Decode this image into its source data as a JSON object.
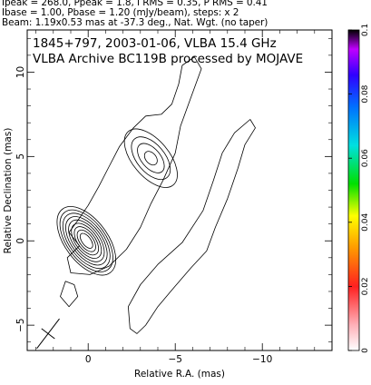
{
  "header": {
    "line1": "Ipeak = 268.0, Ppeak = 1.8, I RMS = 0.35, P RMS = 0.41",
    "line2": "Ibase = 1.00, Pbase = 1.20 (mJy/beam), steps: x 2",
    "line3": "Beam: 1.19x0.53 mas at -37.3 deg., Nat. Wgt. (no taper)"
  },
  "chart_data": {
    "type": "contour",
    "title": "1845+797, 2003-01-06, VLBA 15.4 GHz",
    "subtitle": "VLBA Archive BC119B processed by MOJAVE",
    "xlabel": "Relative R.A. (mas)",
    "ylabel": "Relative Declination (mas)",
    "xlim": [
      3.5,
      -14
    ],
    "ylim": [
      -6.5,
      12.5
    ],
    "x_ticks": [
      {
        "value": 0,
        "label": "0"
      },
      {
        "value": -5,
        "label": "−5"
      },
      {
        "value": -10,
        "label": "−10"
      }
    ],
    "y_ticks": [
      {
        "value": -5,
        "label": "−5"
      },
      {
        "value": 0,
        "label": "0"
      },
      {
        "value": 5,
        "label": "5"
      },
      {
        "value": 10,
        "label": "10"
      }
    ],
    "colorbar": {
      "range": [
        0,
        0.1
      ],
      "ticks": [
        {
          "value": 0,
          "label": "0"
        },
        {
          "value": 0.02,
          "label": "0.02"
        },
        {
          "value": 0.04,
          "label": "0.04"
        },
        {
          "value": 0.06,
          "label": "0.06"
        },
        {
          "value": 0.08,
          "label": "0.08"
        },
        {
          "value": 0.1,
          "label": "0.1"
        }
      ]
    },
    "grid": false,
    "contours": [
      {
        "name": "core",
        "center": [
          0.1,
          0.0
        ],
        "levels": [
          [
            0.45,
            0.25
          ],
          [
            0.65,
            0.38
          ],
          [
            0.85,
            0.5
          ],
          [
            1.05,
            0.62
          ],
          [
            1.25,
            0.74
          ],
          [
            1.45,
            0.86
          ],
          [
            1.65,
            0.98
          ],
          [
            1.85,
            1.1
          ],
          [
            2.05,
            1.22
          ]
        ],
        "angle": -37
      },
      {
        "name": "knot",
        "center": [
          -3.6,
          4.9
        ],
        "levels": [
          [
            0.4,
            0.3
          ],
          [
            0.9,
            0.55
          ],
          [
            1.3,
            0.8
          ],
          [
            1.8,
            1.05
          ]
        ],
        "angle": -40
      }
    ],
    "outer_contours": [
      {
        "name": "inner-jet-envelope",
        "points": [
          [
            0.5,
            -0.3
          ],
          [
            1.2,
            -1.0
          ],
          [
            1.0,
            -1.9
          ],
          [
            -0.1,
            -2.0
          ],
          [
            -1.2,
            -1.5
          ],
          [
            -2.2,
            -0.5
          ],
          [
            -3.0,
            0.8
          ],
          [
            -3.6,
            2.2
          ],
          [
            -4.3,
            3.6
          ],
          [
            -5.0,
            5.2
          ],
          [
            -5.3,
            6.8
          ],
          [
            -5.9,
            8.5
          ],
          [
            -6.5,
            10.2
          ],
          [
            -6.1,
            10.9
          ],
          [
            -5.4,
            10.4
          ],
          [
            -5.2,
            9.3
          ],
          [
            -4.8,
            8.1
          ],
          [
            -4.2,
            7.5
          ],
          [
            -3.3,
            7.4
          ],
          [
            -2.6,
            6.7
          ],
          [
            -1.8,
            5.6
          ],
          [
            -1.2,
            4.4
          ],
          [
            -0.6,
            3.2
          ],
          [
            0.0,
            2.1
          ],
          [
            0.6,
            1.2
          ],
          [
            1.1,
            0.5
          ]
        ]
      },
      {
        "name": "outer-jet-envelope",
        "points": [
          [
            -2.4,
            -5.2
          ],
          [
            -2.3,
            -3.9
          ],
          [
            -3.0,
            -2.6
          ],
          [
            -4.0,
            -1.4
          ],
          [
            -5.4,
            -0.1
          ],
          [
            -6.6,
            1.8
          ],
          [
            -7.2,
            3.6
          ],
          [
            -7.7,
            5.2
          ],
          [
            -8.4,
            6.4
          ],
          [
            -9.3,
            7.2
          ],
          [
            -9.6,
            6.7
          ],
          [
            -9.0,
            5.7
          ],
          [
            -8.6,
            4.3
          ],
          [
            -8.0,
            2.5
          ],
          [
            -7.3,
            0.8
          ],
          [
            -6.8,
            -0.6
          ],
          [
            -5.9,
            -1.6
          ],
          [
            -4.9,
            -2.8
          ],
          [
            -4.0,
            -3.9
          ],
          [
            -3.3,
            -5.0
          ],
          [
            -2.8,
            -5.5
          ]
        ]
      },
      {
        "name": "southwest-blob",
        "points": [
          [
            1.3,
            -2.4
          ],
          [
            1.6,
            -3.3
          ],
          [
            1.1,
            -3.9
          ],
          [
            0.6,
            -3.3
          ],
          [
            0.8,
            -2.6
          ]
        ]
      }
    ],
    "beam": {
      "major": 1.19,
      "minor": 0.53,
      "pa": -37.3,
      "center": [
        2.3,
        -5.5
      ]
    }
  }
}
